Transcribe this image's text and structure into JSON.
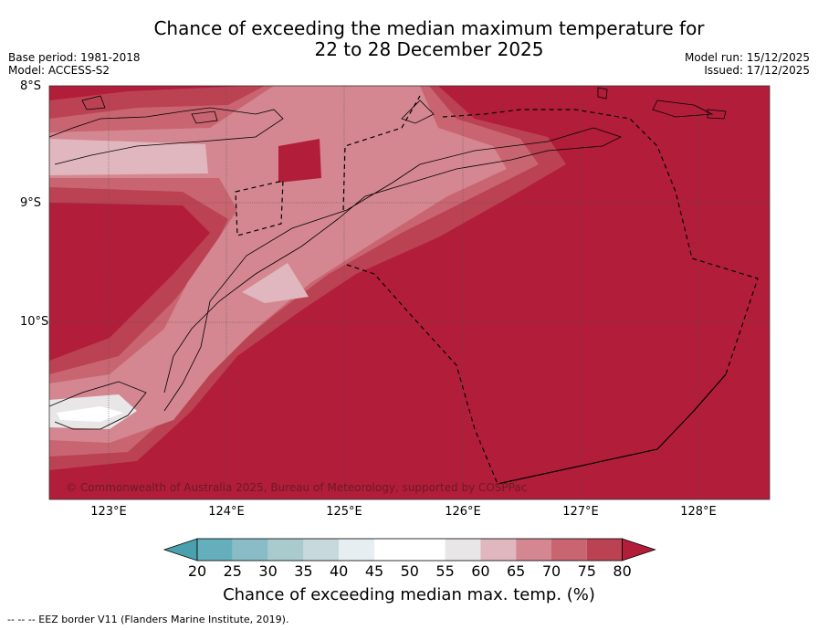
{
  "title": {
    "line1": "Chance of exceeding the median maximum temperature for",
    "line2": "22 to 28 December 2025"
  },
  "meta": {
    "base_period": "Base period: 1981-2018",
    "model": "Model: ACCESS-S2",
    "model_run": "Model run: 15/12/2025",
    "issued": "Issued: 17/12/2025"
  },
  "axes": {
    "latitudes": [
      "8°S",
      "9°S",
      "10°S"
    ],
    "longitudes": [
      "123°E",
      "124°E",
      "125°E",
      "126°E",
      "127°E",
      "128°E"
    ]
  },
  "copyright": "© Commonwealth of Australia 2025, Bureau of Meteorology, supported by COSPPac",
  "colorbar": {
    "ticks": [
      "20",
      "25",
      "30",
      "35",
      "40",
      "45",
      "50",
      "55",
      "60",
      "65",
      "70",
      "75",
      "80"
    ],
    "colors": [
      "#4aa1ad",
      "#65afbc",
      "#89bcc6",
      "#a9cbce",
      "#c7d9dc",
      "#e6eef1",
      "#ffffff",
      "#ffffff",
      "#e8e6e6",
      "#e0b7be",
      "#d48790",
      "#c96571",
      "#bb4253",
      "#b21d3a"
    ],
    "label": "Chance of exceeding median max. temp. (%)"
  },
  "footer": "--  --  -- EEZ border V11 (Flanders Marine Institute, 2019)."
}
